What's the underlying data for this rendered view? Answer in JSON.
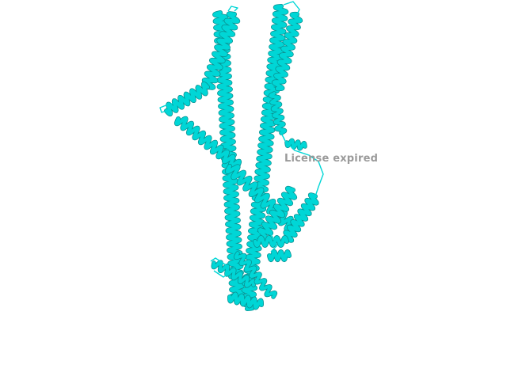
{
  "viewer": {
    "background_color": "#ffffff",
    "structure_color": "#00d6d6",
    "structure_shadow_color": "#0a8f8f",
    "watermark": {
      "text": "License expired",
      "color": "#9a9a9a"
    }
  }
}
